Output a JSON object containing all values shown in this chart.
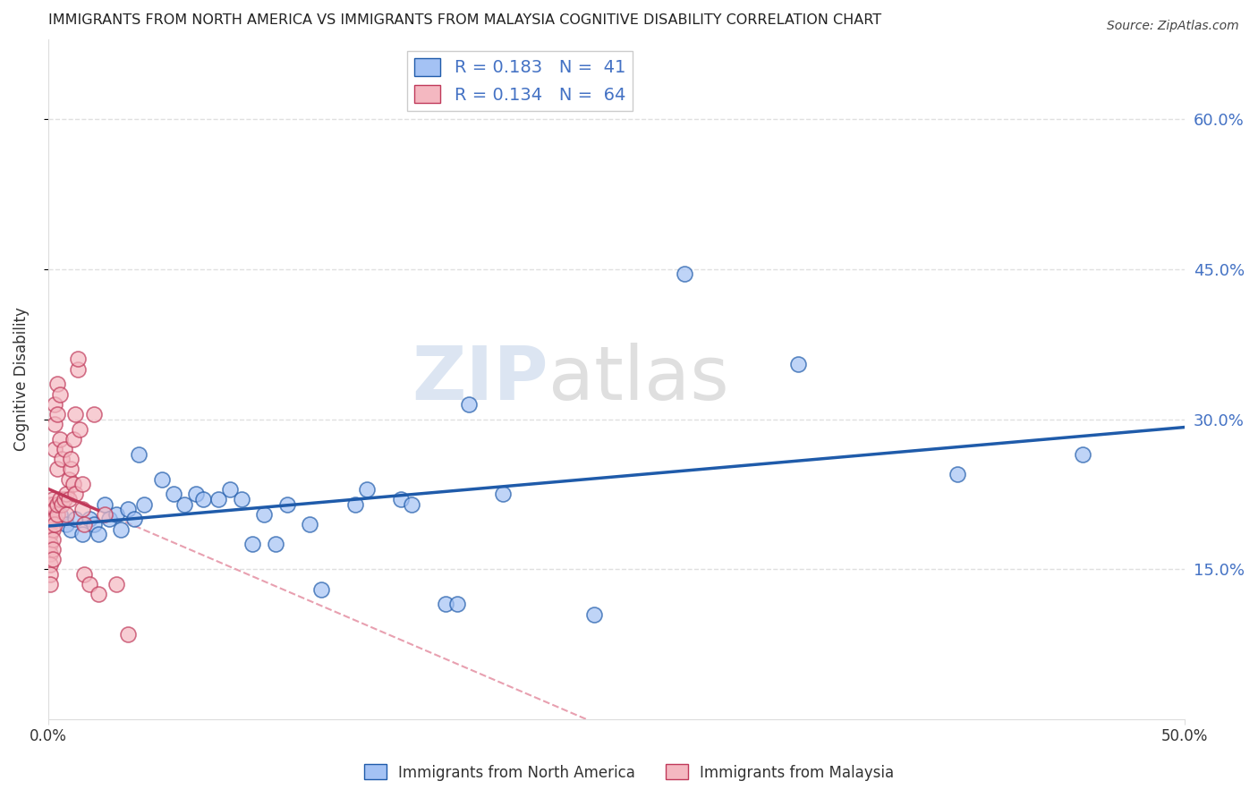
{
  "title": "IMMIGRANTS FROM NORTH AMERICA VS IMMIGRANTS FROM MALAYSIA COGNITIVE DISABILITY CORRELATION CHART",
  "source": "Source: ZipAtlas.com",
  "ylabel": "Cognitive Disability",
  "y_tick_labels": [
    "15.0%",
    "30.0%",
    "45.0%",
    "60.0%"
  ],
  "y_tick_values": [
    0.15,
    0.3,
    0.45,
    0.6
  ],
  "x_range": [
    0.0,
    0.5
  ],
  "y_range": [
    0.0,
    0.68
  ],
  "legend_color1": "#a4c2f4",
  "legend_color2": "#f4b8c1",
  "watermark_zip": "ZIP",
  "watermark_atlas": "atlas",
  "blue_scatter": [
    [
      0.005,
      0.205
    ],
    [
      0.008,
      0.195
    ],
    [
      0.01,
      0.19
    ],
    [
      0.012,
      0.2
    ],
    [
      0.015,
      0.185
    ],
    [
      0.018,
      0.2
    ],
    [
      0.02,
      0.195
    ],
    [
      0.022,
      0.185
    ],
    [
      0.025,
      0.215
    ],
    [
      0.027,
      0.2
    ],
    [
      0.03,
      0.205
    ],
    [
      0.032,
      0.19
    ],
    [
      0.035,
      0.21
    ],
    [
      0.038,
      0.2
    ],
    [
      0.04,
      0.265
    ],
    [
      0.042,
      0.215
    ],
    [
      0.05,
      0.24
    ],
    [
      0.055,
      0.225
    ],
    [
      0.06,
      0.215
    ],
    [
      0.065,
      0.225
    ],
    [
      0.068,
      0.22
    ],
    [
      0.075,
      0.22
    ],
    [
      0.08,
      0.23
    ],
    [
      0.085,
      0.22
    ],
    [
      0.09,
      0.175
    ],
    [
      0.095,
      0.205
    ],
    [
      0.1,
      0.175
    ],
    [
      0.105,
      0.215
    ],
    [
      0.115,
      0.195
    ],
    [
      0.12,
      0.13
    ],
    [
      0.135,
      0.215
    ],
    [
      0.14,
      0.23
    ],
    [
      0.155,
      0.22
    ],
    [
      0.16,
      0.215
    ],
    [
      0.175,
      0.115
    ],
    [
      0.18,
      0.115
    ],
    [
      0.185,
      0.315
    ],
    [
      0.2,
      0.225
    ],
    [
      0.24,
      0.105
    ],
    [
      0.28,
      0.445
    ],
    [
      0.33,
      0.355
    ],
    [
      0.4,
      0.245
    ],
    [
      0.455,
      0.265
    ]
  ],
  "pink_scatter": [
    [
      0.001,
      0.205
    ],
    [
      0.001,
      0.215
    ],
    [
      0.001,
      0.2
    ],
    [
      0.001,
      0.195
    ],
    [
      0.001,
      0.185
    ],
    [
      0.001,
      0.175
    ],
    [
      0.001,
      0.165
    ],
    [
      0.001,
      0.155
    ],
    [
      0.001,
      0.145
    ],
    [
      0.001,
      0.135
    ],
    [
      0.002,
      0.2
    ],
    [
      0.002,
      0.19
    ],
    [
      0.002,
      0.18
    ],
    [
      0.002,
      0.17
    ],
    [
      0.002,
      0.215
    ],
    [
      0.002,
      0.16
    ],
    [
      0.002,
      0.22
    ],
    [
      0.003,
      0.21
    ],
    [
      0.003,
      0.2
    ],
    [
      0.003,
      0.195
    ],
    [
      0.003,
      0.27
    ],
    [
      0.003,
      0.295
    ],
    [
      0.003,
      0.315
    ],
    [
      0.004,
      0.205
    ],
    [
      0.004,
      0.215
    ],
    [
      0.004,
      0.25
    ],
    [
      0.004,
      0.305
    ],
    [
      0.004,
      0.335
    ],
    [
      0.005,
      0.22
    ],
    [
      0.005,
      0.28
    ],
    [
      0.005,
      0.325
    ],
    [
      0.006,
      0.26
    ],
    [
      0.006,
      0.215
    ],
    [
      0.007,
      0.22
    ],
    [
      0.007,
      0.27
    ],
    [
      0.008,
      0.225
    ],
    [
      0.008,
      0.205
    ],
    [
      0.009,
      0.22
    ],
    [
      0.009,
      0.24
    ],
    [
      0.01,
      0.25
    ],
    [
      0.01,
      0.26
    ],
    [
      0.011,
      0.235
    ],
    [
      0.011,
      0.28
    ],
    [
      0.012,
      0.305
    ],
    [
      0.012,
      0.225
    ],
    [
      0.013,
      0.35
    ],
    [
      0.013,
      0.36
    ],
    [
      0.014,
      0.29
    ],
    [
      0.015,
      0.21
    ],
    [
      0.015,
      0.235
    ],
    [
      0.016,
      0.145
    ],
    [
      0.016,
      0.195
    ],
    [
      0.018,
      0.135
    ],
    [
      0.02,
      0.305
    ],
    [
      0.022,
      0.125
    ],
    [
      0.025,
      0.205
    ],
    [
      0.03,
      0.135
    ],
    [
      0.035,
      0.085
    ]
  ],
  "blue_line_color": "#1f5baa",
  "pink_line_color": "#c0395a",
  "dashed_line_color": "#e8a0b0",
  "bg_color": "#ffffff",
  "grid_color": "#e0e0e0"
}
